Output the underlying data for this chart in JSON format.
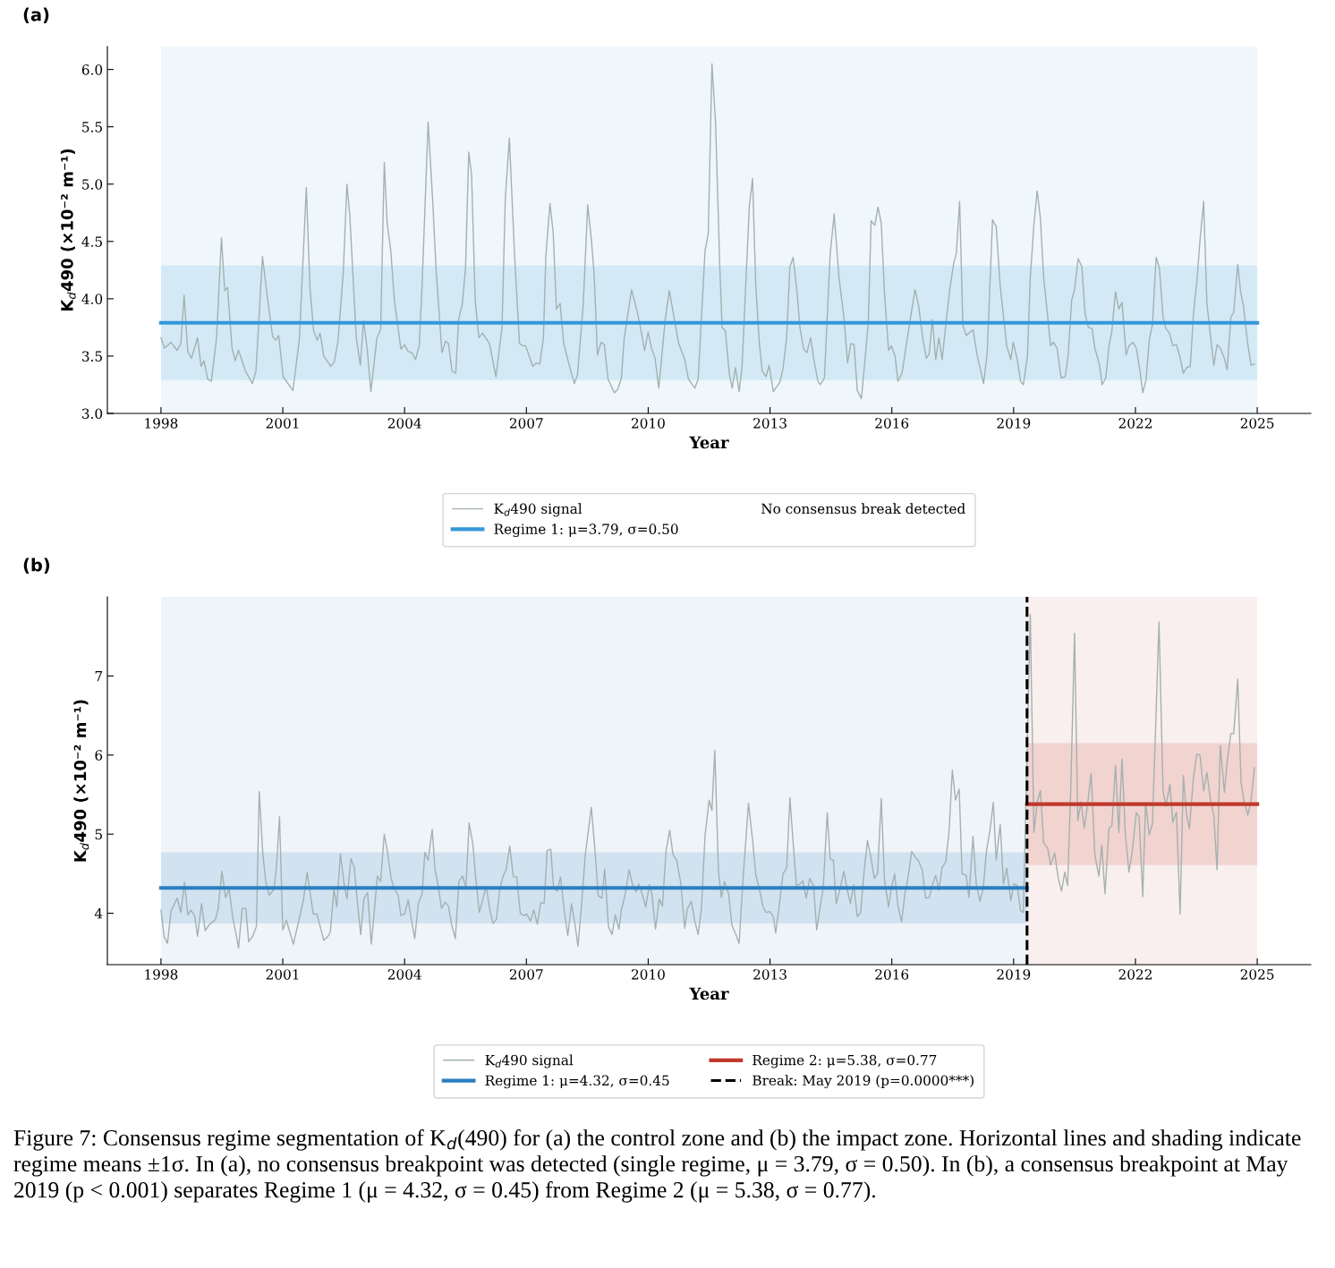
{
  "chart_data": [
    {
      "type": "line",
      "title": "(a)",
      "xlabel": "Year",
      "ylabel": "K$_{d}$490 (×10⁻² m⁻¹)",
      "xlim": [
        1996.68,
        2026.32
      ],
      "xticks": [
        1998,
        2001,
        2004,
        2007,
        2010,
        2013,
        2016,
        2019,
        2022,
        2025
      ],
      "ylim": [
        3.0,
        6.2
      ],
      "yticks": [
        {
          "value": 3,
          "label": "3.0"
        },
        3.5,
        {
          "value": 4,
          "label": "4.0"
        },
        4.5,
        {
          "value": 5,
          "label": "5.0"
        },
        5.5,
        {
          "value": 6,
          "label": "6.0"
        }
      ],
      "legend": "bottom",
      "bands": [
        {
          "axis": "x",
          "from": 1998,
          "to": 2025,
          "color": "#eff7fb"
        }
      ],
      "annotations": [
        "No consensus break detected"
      ],
      "series": [
        {
          "name": "K$_{d}$490 signal",
          "color": "#a3b1af",
          "x": [
            1998.0,
            1998.09,
            1998.25,
            1998.4,
            1998.49,
            1998.57,
            1998.66,
            1998.75,
            1998.9,
            1998.99,
            1999.06,
            1999.15,
            1999.24,
            1999.37,
            1999.49,
            1999.57,
            1999.64,
            1999.75,
            1999.83,
            1999.91,
            2000.08,
            2000.25,
            2000.34,
            2000.5,
            2000.61,
            2000.75,
            2000.83,
            2000.9,
            2001.01,
            2001.25,
            2001.41,
            2001.58,
            2001.67,
            2001.76,
            2001.85,
            2001.92,
            2002.01,
            2002.18,
            2002.27,
            2002.36,
            2002.49,
            2002.58,
            2002.65,
            2002.81,
            2002.91,
            2002.99,
            2003.08,
            2003.17,
            2003.32,
            2003.41,
            2003.5,
            2003.57,
            2003.66,
            2003.75,
            2003.91,
            2004.0,
            2004.09,
            2004.18,
            2004.27,
            2004.36,
            2004.43,
            2004.58,
            2004.69,
            2004.78,
            2004.92,
            2005.01,
            2005.08,
            2005.17,
            2005.26,
            2005.33,
            2005.42,
            2005.5,
            2005.58,
            2005.65,
            2005.74,
            2005.83,
            2005.92,
            2006.09,
            2006.25,
            2006.4,
            2006.48,
            2006.58,
            2006.72,
            2006.83,
            2006.91,
            2006.98,
            2007.16,
            2007.24,
            2007.33,
            2007.42,
            2007.48,
            2007.58,
            2007.66,
            2007.74,
            2007.83,
            2007.92,
            2008.04,
            2008.18,
            2008.26,
            2008.4,
            2008.51,
            2008.6,
            2008.67,
            2008.75,
            2008.84,
            2008.92,
            2009.01,
            2009.17,
            2009.25,
            2009.34,
            2009.41,
            2009.59,
            2009.72,
            2009.81,
            2009.91,
            2010.0,
            2010.08,
            2010.17,
            2010.26,
            2010.42,
            2010.52,
            2010.75,
            2010.9,
            2010.99,
            2011.15,
            2011.23,
            2011.4,
            2011.48,
            2011.57,
            2011.66,
            2011.76,
            2011.82,
            2011.9,
            2012.0,
            2012.07,
            2012.15,
            2012.24,
            2012.31,
            2012.49,
            2012.57,
            2012.65,
            2012.74,
            2012.81,
            2012.9,
            2012.98,
            2013.08,
            2013.24,
            2013.32,
            2013.41,
            2013.49,
            2013.57,
            2013.67,
            2013.74,
            2013.83,
            2013.91,
            2014.0,
            2014.08,
            2014.18,
            2014.24,
            2014.34,
            2014.48,
            2014.58,
            2014.7,
            2014.82,
            2014.91,
            2014.99,
            2015.07,
            2015.15,
            2015.25,
            2015.34,
            2015.42,
            2015.49,
            2015.58,
            2015.66,
            2015.74,
            2015.82,
            2015.92,
            2015.99,
            2016.08,
            2016.15,
            2016.25,
            2016.41,
            2016.57,
            2016.66,
            2016.76,
            2016.85,
            2016.92,
            2017.0,
            2017.08,
            2017.16,
            2017.24,
            2017.35,
            2017.43,
            2017.52,
            2017.59,
            2017.67,
            2017.75,
            2017.83,
            2018.0,
            2018.1,
            2018.26,
            2018.35,
            2018.48,
            2018.57,
            2018.67,
            2018.83,
            2018.93,
            2018.99,
            2019.09,
            2019.17,
            2019.24,
            2019.34,
            2019.41,
            2019.5,
            2019.58,
            2019.66,
            2019.74,
            2019.84,
            2019.91,
            2019.98,
            2020.07,
            2020.17,
            2020.27,
            2020.34,
            2020.43,
            2020.5,
            2020.59,
            2020.68,
            2020.76,
            2020.84,
            2020.93,
            2021.0,
            2021.11,
            2021.18,
            2021.27,
            2021.35,
            2021.42,
            2021.51,
            2021.59,
            2021.67,
            2021.77,
            2021.84,
            2021.94,
            2022.02,
            2022.11,
            2022.18,
            2022.26,
            2022.34,
            2022.42,
            2022.51,
            2022.59,
            2022.68,
            2022.75,
            2022.84,
            2022.92,
            2023.01,
            2023.09,
            2023.18,
            2023.26,
            2023.35,
            2023.43,
            2023.52,
            2023.59,
            2023.68,
            2023.76,
            2023.85,
            2023.93,
            2024.01,
            2024.09,
            2024.19,
            2024.26,
            2024.35,
            2024.42,
            2024.52,
            2024.59,
            2024.66,
            2024.76,
            2024.85,
            2024.93
          ],
          "values": [
            3.66,
            3.57,
            3.62,
            3.55,
            3.61,
            4.03,
            3.54,
            3.48,
            3.66,
            3.41,
            3.46,
            3.3,
            3.28,
            3.66,
            4.53,
            4.07,
            4.1,
            3.57,
            3.46,
            3.55,
            3.37,
            3.26,
            3.37,
            4.37,
            4.04,
            3.67,
            3.64,
            3.68,
            3.32,
            3.2,
            3.65,
            4.97,
            4.09,
            3.72,
            3.64,
            3.7,
            3.5,
            3.41,
            3.45,
            3.63,
            4.23,
            5.0,
            4.73,
            3.66,
            3.42,
            3.81,
            3.56,
            3.19,
            3.66,
            3.73,
            5.19,
            4.66,
            4.42,
            3.98,
            3.56,
            3.6,
            3.54,
            3.53,
            3.47,
            3.59,
            4.11,
            5.54,
            4.87,
            4.23,
            3.53,
            3.63,
            3.61,
            3.37,
            3.35,
            3.82,
            3.95,
            4.26,
            5.28,
            5.08,
            3.98,
            3.66,
            3.7,
            3.61,
            3.32,
            3.75,
            4.87,
            5.4,
            4.3,
            3.61,
            3.59,
            3.59,
            3.41,
            3.44,
            3.43,
            3.66,
            4.38,
            4.83,
            4.58,
            3.91,
            3.96,
            3.61,
            3.44,
            3.26,
            3.34,
            3.95,
            4.82,
            4.52,
            4.2,
            3.51,
            3.62,
            3.6,
            3.3,
            3.18,
            3.21,
            3.31,
            3.66,
            4.08,
            3.9,
            3.75,
            3.55,
            3.71,
            3.57,
            3.48,
            3.22,
            3.82,
            4.07,
            3.61,
            3.47,
            3.3,
            3.22,
            3.3,
            4.42,
            4.57,
            6.05,
            5.53,
            4.31,
            3.75,
            3.72,
            3.34,
            3.22,
            3.4,
            3.19,
            3.4,
            4.8,
            5.05,
            4.11,
            3.6,
            3.37,
            3.32,
            3.42,
            3.19,
            3.27,
            3.39,
            3.66,
            4.28,
            4.36,
            4.04,
            3.74,
            3.56,
            3.53,
            3.66,
            3.47,
            3.28,
            3.25,
            3.31,
            4.38,
            4.74,
            4.18,
            3.84,
            3.44,
            3.61,
            3.6,
            3.2,
            3.13,
            3.47,
            3.79,
            4.68,
            4.64,
            4.8,
            4.66,
            4.04,
            3.55,
            3.59,
            3.5,
            3.28,
            3.35,
            3.72,
            4.08,
            3.94,
            3.66,
            3.48,
            3.52,
            3.82,
            3.47,
            3.66,
            3.47,
            3.84,
            4.09,
            4.3,
            4.4,
            4.85,
            3.77,
            3.68,
            3.73,
            3.51,
            3.26,
            3.53,
            4.69,
            4.63,
            4.11,
            3.59,
            3.47,
            3.62,
            3.47,
            3.28,
            3.25,
            3.5,
            4.18,
            4.65,
            4.94,
            4.7,
            4.18,
            3.84,
            3.59,
            3.62,
            3.57,
            3.31,
            3.32,
            3.5,
            3.99,
            4.08,
            4.35,
            4.28,
            3.87,
            3.75,
            3.74,
            3.57,
            3.43,
            3.25,
            3.31,
            3.59,
            3.72,
            4.06,
            3.91,
            3.97,
            3.51,
            3.59,
            3.62,
            3.57,
            3.38,
            3.18,
            3.29,
            3.64,
            3.78,
            4.36,
            4.27,
            3.84,
            3.74,
            3.7,
            3.59,
            3.6,
            3.5,
            3.35,
            3.4,
            3.41,
            3.87,
            4.18,
            4.51,
            4.85,
            3.96,
            3.67,
            3.42,
            3.6,
            3.57,
            3.48,
            3.38,
            3.84,
            3.88,
            4.3,
            4.06,
            3.94,
            3.62,
            3.42,
            3.43
          ]
        },
        {
          "name": "Regime 1: μ=3.79, σ=0.50",
          "color": "#3498db",
          "x": [
            1998,
            2025
          ],
          "values": [
            3.79,
            3.79
          ],
          "lower": [
            3.29,
            3.29
          ],
          "upper": [
            4.29,
            4.29
          ]
        }
      ]
    },
    {
      "type": "line",
      "title": "(b)",
      "xlabel": "Year",
      "ylabel": "K$_{d}$490 (×10⁻² m⁻¹)",
      "xlim": [
        1996.68,
        2026.32
      ],
      "xticks": [
        1998,
        2001,
        2004,
        2007,
        2010,
        2013,
        2016,
        2019,
        2022,
        2025
      ],
      "ylim": [
        3.35,
        8.0
      ],
      "yticks": [
        4,
        5,
        6,
        7
      ],
      "legend": "bottom",
      "bands": [
        {
          "axis": "x",
          "from": 1998,
          "to": 2019.33,
          "color": "#eff4f9"
        },
        {
          "axis": "x",
          "from": 2019.33,
          "to": 2025,
          "color": "#f9efee"
        }
      ],
      "ref_lines": [
        {
          "axis": "x",
          "value": 2019.33,
          "label": "Break: May 2019 (p=0.0000***)",
          "color": "#000000",
          "line_style": "dashed"
        }
      ],
      "annotations": [
        "Figure 7: Consensus regime segmentation of K$_{d}$(490) for (a) the control zone and (b) the impact zone. Horizontal lines and shading indicate regime means ±1σ. In (a), no consensus breakpoint was detected (single regime, μ = 3.79, σ = 0.50). In (b), a consensus breakpoint at May 2019 (p < 0.001) separates Regime 1 (μ = 4.32, σ = 0.45) from Regime 2 (μ = 5.38, σ = 0.77)."
      ],
      "series": [
        {
          "name": "K$_{d}$490 signal",
          "color": "#a3b1af",
          "x": [
            1998.0,
            1998.08,
            1998.16,
            1998.25,
            1998.4,
            1998.49,
            1998.58,
            1998.66,
            1998.74,
            1998.83,
            1998.9,
            1999.0,
            1999.09,
            1999.18,
            1999.34,
            1999.41,
            1999.5,
            1999.59,
            1999.68,
            1999.77,
            1999.84,
            1999.91,
            2000.0,
            2000.09,
            2000.16,
            2000.26,
            2000.35,
            2000.42,
            2000.51,
            2000.59,
            2000.67,
            2000.78,
            2000.84,
            2000.92,
            2001.0,
            2001.09,
            2001.19,
            2001.26,
            2001.37,
            2001.51,
            2001.6,
            2001.75,
            2001.84,
            2002.01,
            2002.1,
            2002.17,
            2002.26,
            2002.33,
            2002.42,
            2002.51,
            2002.58,
            2002.68,
            2002.76,
            2002.83,
            2002.92,
            2003.0,
            2003.09,
            2003.18,
            2003.24,
            2003.33,
            2003.41,
            2003.5,
            2003.58,
            2003.67,
            2003.74,
            2003.84,
            2003.91,
            2004.0,
            2004.09,
            2004.16,
            2004.25,
            2004.34,
            2004.43,
            2004.5,
            2004.58,
            2004.68,
            2004.75,
            2004.82,
            2004.91,
            2005.0,
            2005.08,
            2005.16,
            2005.25,
            2005.34,
            2005.43,
            2005.51,
            2005.59,
            2005.68,
            2005.75,
            2005.84,
            2005.92,
            2006.01,
            2006.1,
            2006.18,
            2006.26,
            2006.35,
            2006.42,
            2006.5,
            2006.59,
            2006.68,
            2006.76,
            2006.85,
            2006.94,
            2007.01,
            2007.1,
            2007.18,
            2007.27,
            2007.35,
            2007.44,
            2007.51,
            2007.6,
            2007.67,
            2007.76,
            2007.84,
            2007.93,
            2008.02,
            2008.11,
            2008.2,
            2008.27,
            2008.36,
            2008.45,
            2008.6,
            2008.69,
            2008.77,
            2008.86,
            2008.93,
            2009.02,
            2009.11,
            2009.19,
            2009.28,
            2009.34,
            2009.43,
            2009.53,
            2009.61,
            2009.7,
            2009.77,
            2009.86,
            2009.94,
            2010.03,
            2010.09,
            2010.18,
            2010.27,
            2010.35,
            2010.44,
            2010.53,
            2010.61,
            2010.7,
            2010.8,
            2010.9,
            2010.96,
            2011.06,
            2011.15,
            2011.23,
            2011.31,
            2011.4,
            2011.5,
            2011.57,
            2011.64,
            2011.73,
            2011.8,
            2011.88,
            2011.98,
            2012.06,
            2012.16,
            2012.24,
            2012.33,
            2012.47,
            2012.57,
            2012.65,
            2012.74,
            2012.83,
            2012.9,
            2013.0,
            2013.08,
            2013.14,
            2013.24,
            2013.32,
            2013.41,
            2013.49,
            2013.57,
            2013.65,
            2013.74,
            2013.81,
            2013.89,
            2013.98,
            2014.07,
            2014.15,
            2014.24,
            2014.31,
            2014.41,
            2014.48,
            2014.56,
            2014.63,
            2014.72,
            2014.82,
            2014.88,
            2014.98,
            2015.06,
            2015.15,
            2015.23,
            2015.32,
            2015.4,
            2015.49,
            2015.57,
            2015.65,
            2015.74,
            2015.82,
            2015.92,
            2015.99,
            2016.07,
            2016.15,
            2016.24,
            2016.32,
            2016.39,
            2016.49,
            2016.59,
            2016.66,
            2016.75,
            2016.83,
            2016.92,
            2017.01,
            2017.08,
            2017.16,
            2017.24,
            2017.33,
            2017.41,
            2017.49,
            2017.57,
            2017.66,
            2017.73,
            2017.83,
            2017.9,
            2018.0,
            2018.08,
            2018.17,
            2018.25,
            2018.33,
            2018.42,
            2018.5,
            2018.57,
            2018.67,
            2018.75,
            2018.83,
            2018.93,
            2019.01,
            2019.09,
            2019.17,
            2019.24,
            2019.41,
            2019.5,
            2019.58,
            2019.66,
            2019.74,
            2019.84,
            2019.91,
            2020.01,
            2020.1,
            2020.18,
            2020.26,
            2020.33,
            2020.41,
            2020.5,
            2020.58,
            2020.66,
            2020.74,
            2020.81,
            2020.91,
            2021.0,
            2021.1,
            2021.17,
            2021.25,
            2021.35,
            2021.42,
            2021.51,
            2021.59,
            2021.67,
            2021.75,
            2021.84,
            2021.92,
            2022.02,
            2022.09,
            2022.18,
            2022.25,
            2022.34,
            2022.42,
            2022.58,
            2022.68,
            2022.75,
            2022.85,
            2022.92,
            2023.01,
            2023.1,
            2023.18,
            2023.26,
            2023.33,
            2023.42,
            2023.51,
            2023.59,
            2023.68,
            2023.76,
            2023.85,
            2023.93,
            2024.01,
            2024.09,
            2024.19,
            2024.26,
            2024.35,
            2024.42,
            2024.52,
            2024.6,
            2024.68,
            2024.77,
            2024.85,
            2024.93
          ],
          "values": [
            4.04,
            3.7,
            3.62,
            4.03,
            4.19,
            4.01,
            4.39,
            3.98,
            4.04,
            3.97,
            3.71,
            4.12,
            3.78,
            3.85,
            3.92,
            4.06,
            4.53,
            4.2,
            4.3,
            3.94,
            3.76,
            3.56,
            4.06,
            4.06,
            3.64,
            3.71,
            3.83,
            5.54,
            4.74,
            4.37,
            4.23,
            4.3,
            4.55,
            5.22,
            3.79,
            3.91,
            3.73,
            3.61,
            3.85,
            4.17,
            4.52,
            3.99,
            3.99,
            3.66,
            3.7,
            3.76,
            4.3,
            4.08,
            4.75,
            4.37,
            4.18,
            4.69,
            4.58,
            4.18,
            3.73,
            4.19,
            4.26,
            3.61,
            3.94,
            4.47,
            4.4,
            5.0,
            4.77,
            4.44,
            4.32,
            4.23,
            3.97,
            3.99,
            4.17,
            3.94,
            3.68,
            4.13,
            4.24,
            4.77,
            4.67,
            5.06,
            4.55,
            4.37,
            4.06,
            4.14,
            4.09,
            3.85,
            3.68,
            4.41,
            4.47,
            4.32,
            5.14,
            4.88,
            4.46,
            4.01,
            4.16,
            4.34,
            4.04,
            3.87,
            3.92,
            4.32,
            4.46,
            4.55,
            4.85,
            4.46,
            4.46,
            4.0,
            3.97,
            3.99,
            3.9,
            4.04,
            3.86,
            4.13,
            4.13,
            4.79,
            4.81,
            4.32,
            4.28,
            4.46,
            4.04,
            3.72,
            4.12,
            3.85,
            3.58,
            4.11,
            4.74,
            5.34,
            4.79,
            4.22,
            4.19,
            4.56,
            3.83,
            3.73,
            3.98,
            3.8,
            4.04,
            4.23,
            4.55,
            4.37,
            4.27,
            4.37,
            4.23,
            4.08,
            4.36,
            4.24,
            3.8,
            4.18,
            4.09,
            4.79,
            5.05,
            4.74,
            4.67,
            4.39,
            3.81,
            4.05,
            4.15,
            3.9,
            3.73,
            4.05,
            4.98,
            5.43,
            5.3,
            6.06,
            4.54,
            4.2,
            4.4,
            4.25,
            3.85,
            3.73,
            3.62,
            4.39,
            5.39,
            4.93,
            4.49,
            4.3,
            4.08,
            4.01,
            4.02,
            3.96,
            3.75,
            4.15,
            4.5,
            4.57,
            5.46,
            4.89,
            4.35,
            4.37,
            4.41,
            4.19,
            4.44,
            4.35,
            3.79,
            4.1,
            4.31,
            5.27,
            4.69,
            4.67,
            4.12,
            4.3,
            4.53,
            4.35,
            4.12,
            4.36,
            3.96,
            4.0,
            4.54,
            4.92,
            4.69,
            4.44,
            4.5,
            5.45,
            4.42,
            4.08,
            4.32,
            4.5,
            4.1,
            3.89,
            4.24,
            4.42,
            4.78,
            4.7,
            4.66,
            4.55,
            4.19,
            4.2,
            4.37,
            4.48,
            4.29,
            4.58,
            4.65,
            5.04,
            5.81,
            5.43,
            5.57,
            4.5,
            4.48,
            4.2,
            4.97,
            4.37,
            4.15,
            4.31,
            4.78,
            5.06,
            5.4,
            4.67,
            5.12,
            4.37,
            4.57,
            4.16,
            4.37,
            4.35,
            4.03,
            4.01,
            7.78,
            5.02,
            5.4,
            5.55,
            4.89,
            4.82,
            4.61,
            4.76,
            4.44,
            4.28,
            4.52,
            4.35,
            5.62,
            7.54,
            5.17,
            5.41,
            5.08,
            5.33,
            5.77,
            4.74,
            4.47,
            4.86,
            4.25,
            5.08,
            5.1,
            5.87,
            5.02,
            5.95,
            5.01,
            4.52,
            4.77,
            5.27,
            5.22,
            4.21,
            5.4,
            4.99,
            5.13,
            7.68,
            5.55,
            5.35,
            5.63,
            5.15,
            5.28,
            3.99,
            5.74,
            5.24,
            5.07,
            5.67,
            6.01,
            6.0,
            5.55,
            5.78,
            5.43,
            5.24,
            4.55,
            6.12,
            5.53,
            5.92,
            6.27,
            6.27,
            6.96,
            5.66,
            5.4,
            5.24,
            5.43,
            5.84
          ]
        },
        {
          "name": "Regime 1: μ=4.32, σ=0.45",
          "color": "#2a7fc1",
          "x": [
            1998,
            2019.33
          ],
          "values": [
            4.32,
            4.32
          ],
          "lower": [
            3.87,
            3.87
          ],
          "upper": [
            4.77,
            4.77
          ]
        },
        {
          "name": "Regime 2: μ=5.38, σ=0.77",
          "color": "#c0392b",
          "x": [
            2019.33,
            2025
          ],
          "values": [
            5.38,
            5.38
          ],
          "lower": [
            4.61,
            4.61
          ],
          "upper": [
            6.15,
            6.15
          ]
        }
      ]
    }
  ]
}
